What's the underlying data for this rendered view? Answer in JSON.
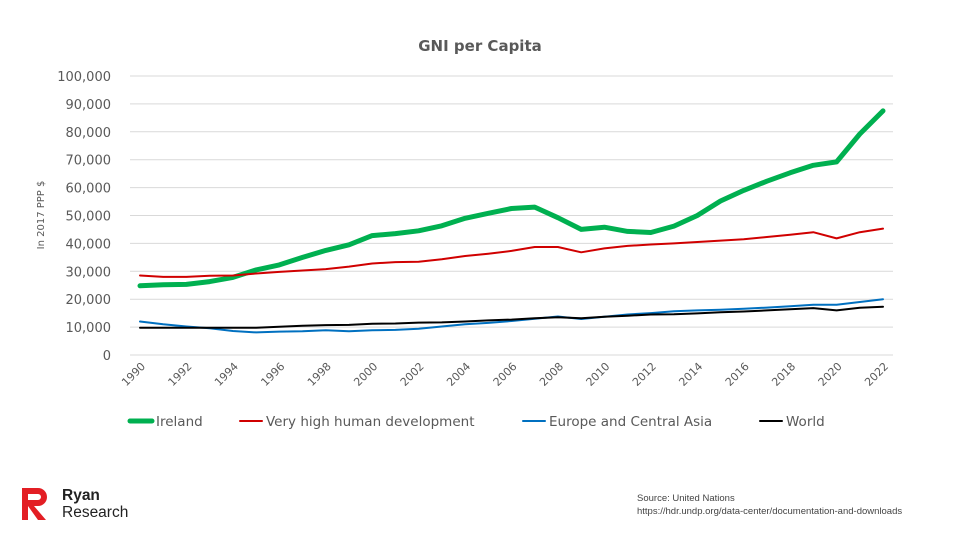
{
  "chart_data": {
    "type": "line",
    "title": "GNI per Capita",
    "xlabel": "",
    "ylabel": "In 2017 PPP $",
    "ylim": [
      0,
      100000
    ],
    "yticks": [
      "0",
      "10,000",
      "20,000",
      "30,000",
      "40,000",
      "50,000",
      "60,000",
      "70,000",
      "80,000",
      "90,000",
      "100,000"
    ],
    "ytick_values": [
      0,
      10000,
      20000,
      30000,
      40000,
      50000,
      60000,
      70000,
      80000,
      90000,
      100000
    ],
    "x": [
      1990,
      1991,
      1992,
      1993,
      1994,
      1995,
      1996,
      1997,
      1998,
      1999,
      2000,
      2001,
      2002,
      2003,
      2004,
      2005,
      2006,
      2007,
      2008,
      2009,
      2010,
      2011,
      2012,
      2013,
      2014,
      2015,
      2016,
      2017,
      2018,
      2019,
      2020,
      2021,
      2022
    ],
    "xticks": [
      "1990",
      "1992",
      "1994",
      "1996",
      "1998",
      "2000",
      "2002",
      "2004",
      "2006",
      "2008",
      "2010",
      "2012",
      "2014",
      "2016",
      "2018",
      "2020",
      "2022"
    ],
    "grid": true,
    "legend_position": "bottom",
    "series": [
      {
        "name": "Ireland",
        "color": "#00b050",
        "width": "thick",
        "values": [
          24800,
          25200,
          25300,
          26300,
          27800,
          30500,
          32300,
          35000,
          37500,
          39500,
          42800,
          43500,
          44500,
          46300,
          49000,
          50800,
          52500,
          53000,
          49200,
          45000,
          45800,
          44300,
          43900,
          46200,
          50000,
          55200,
          59000,
          62300,
          65300,
          68000,
          69200,
          79200,
          87500
        ]
      },
      {
        "name": "Very high human development",
        "color": "#d00000",
        "width": "normal",
        "values": [
          28500,
          28000,
          28000,
          28400,
          28500,
          29200,
          29800,
          30300,
          30800,
          31700,
          32800,
          33300,
          33400,
          34300,
          35500,
          36300,
          37300,
          38700,
          38700,
          36800,
          38200,
          39100,
          39600,
          40000,
          40500,
          41000,
          41500,
          42300,
          43100,
          44000,
          41800,
          44000,
          45300
        ]
      },
      {
        "name": "Europe and Central Asia",
        "color": "#0070c0",
        "width": "normal",
        "values": [
          12000,
          11000,
          10200,
          9600,
          8600,
          8100,
          8400,
          8500,
          8900,
          8500,
          8900,
          9000,
          9400,
          10200,
          11000,
          11500,
          12200,
          13000,
          13800,
          12900,
          13700,
          14500,
          15000,
          15700,
          16000,
          16200,
          16600,
          17000,
          17500,
          18000,
          18000,
          19000,
          20000
        ]
      },
      {
        "name": "World",
        "color": "#000000",
        "width": "normal",
        "values": [
          9800,
          9800,
          9800,
          9800,
          9800,
          9800,
          10100,
          10500,
          10700,
          10800,
          11200,
          11300,
          11600,
          11700,
          12000,
          12400,
          12700,
          13200,
          13500,
          13200,
          13700,
          14100,
          14500,
          14600,
          14900,
          15300,
          15600,
          16000,
          16400,
          16800,
          16000,
          16900,
          17300
        ]
      }
    ]
  },
  "branding": {
    "line1": "Ryan",
    "line2": "Research",
    "brand_color": "#e31e24"
  },
  "source": {
    "line1": "Source: United Nations",
    "line2": "https://hdr.undp.org/data-center/documentation-and-downloads"
  }
}
